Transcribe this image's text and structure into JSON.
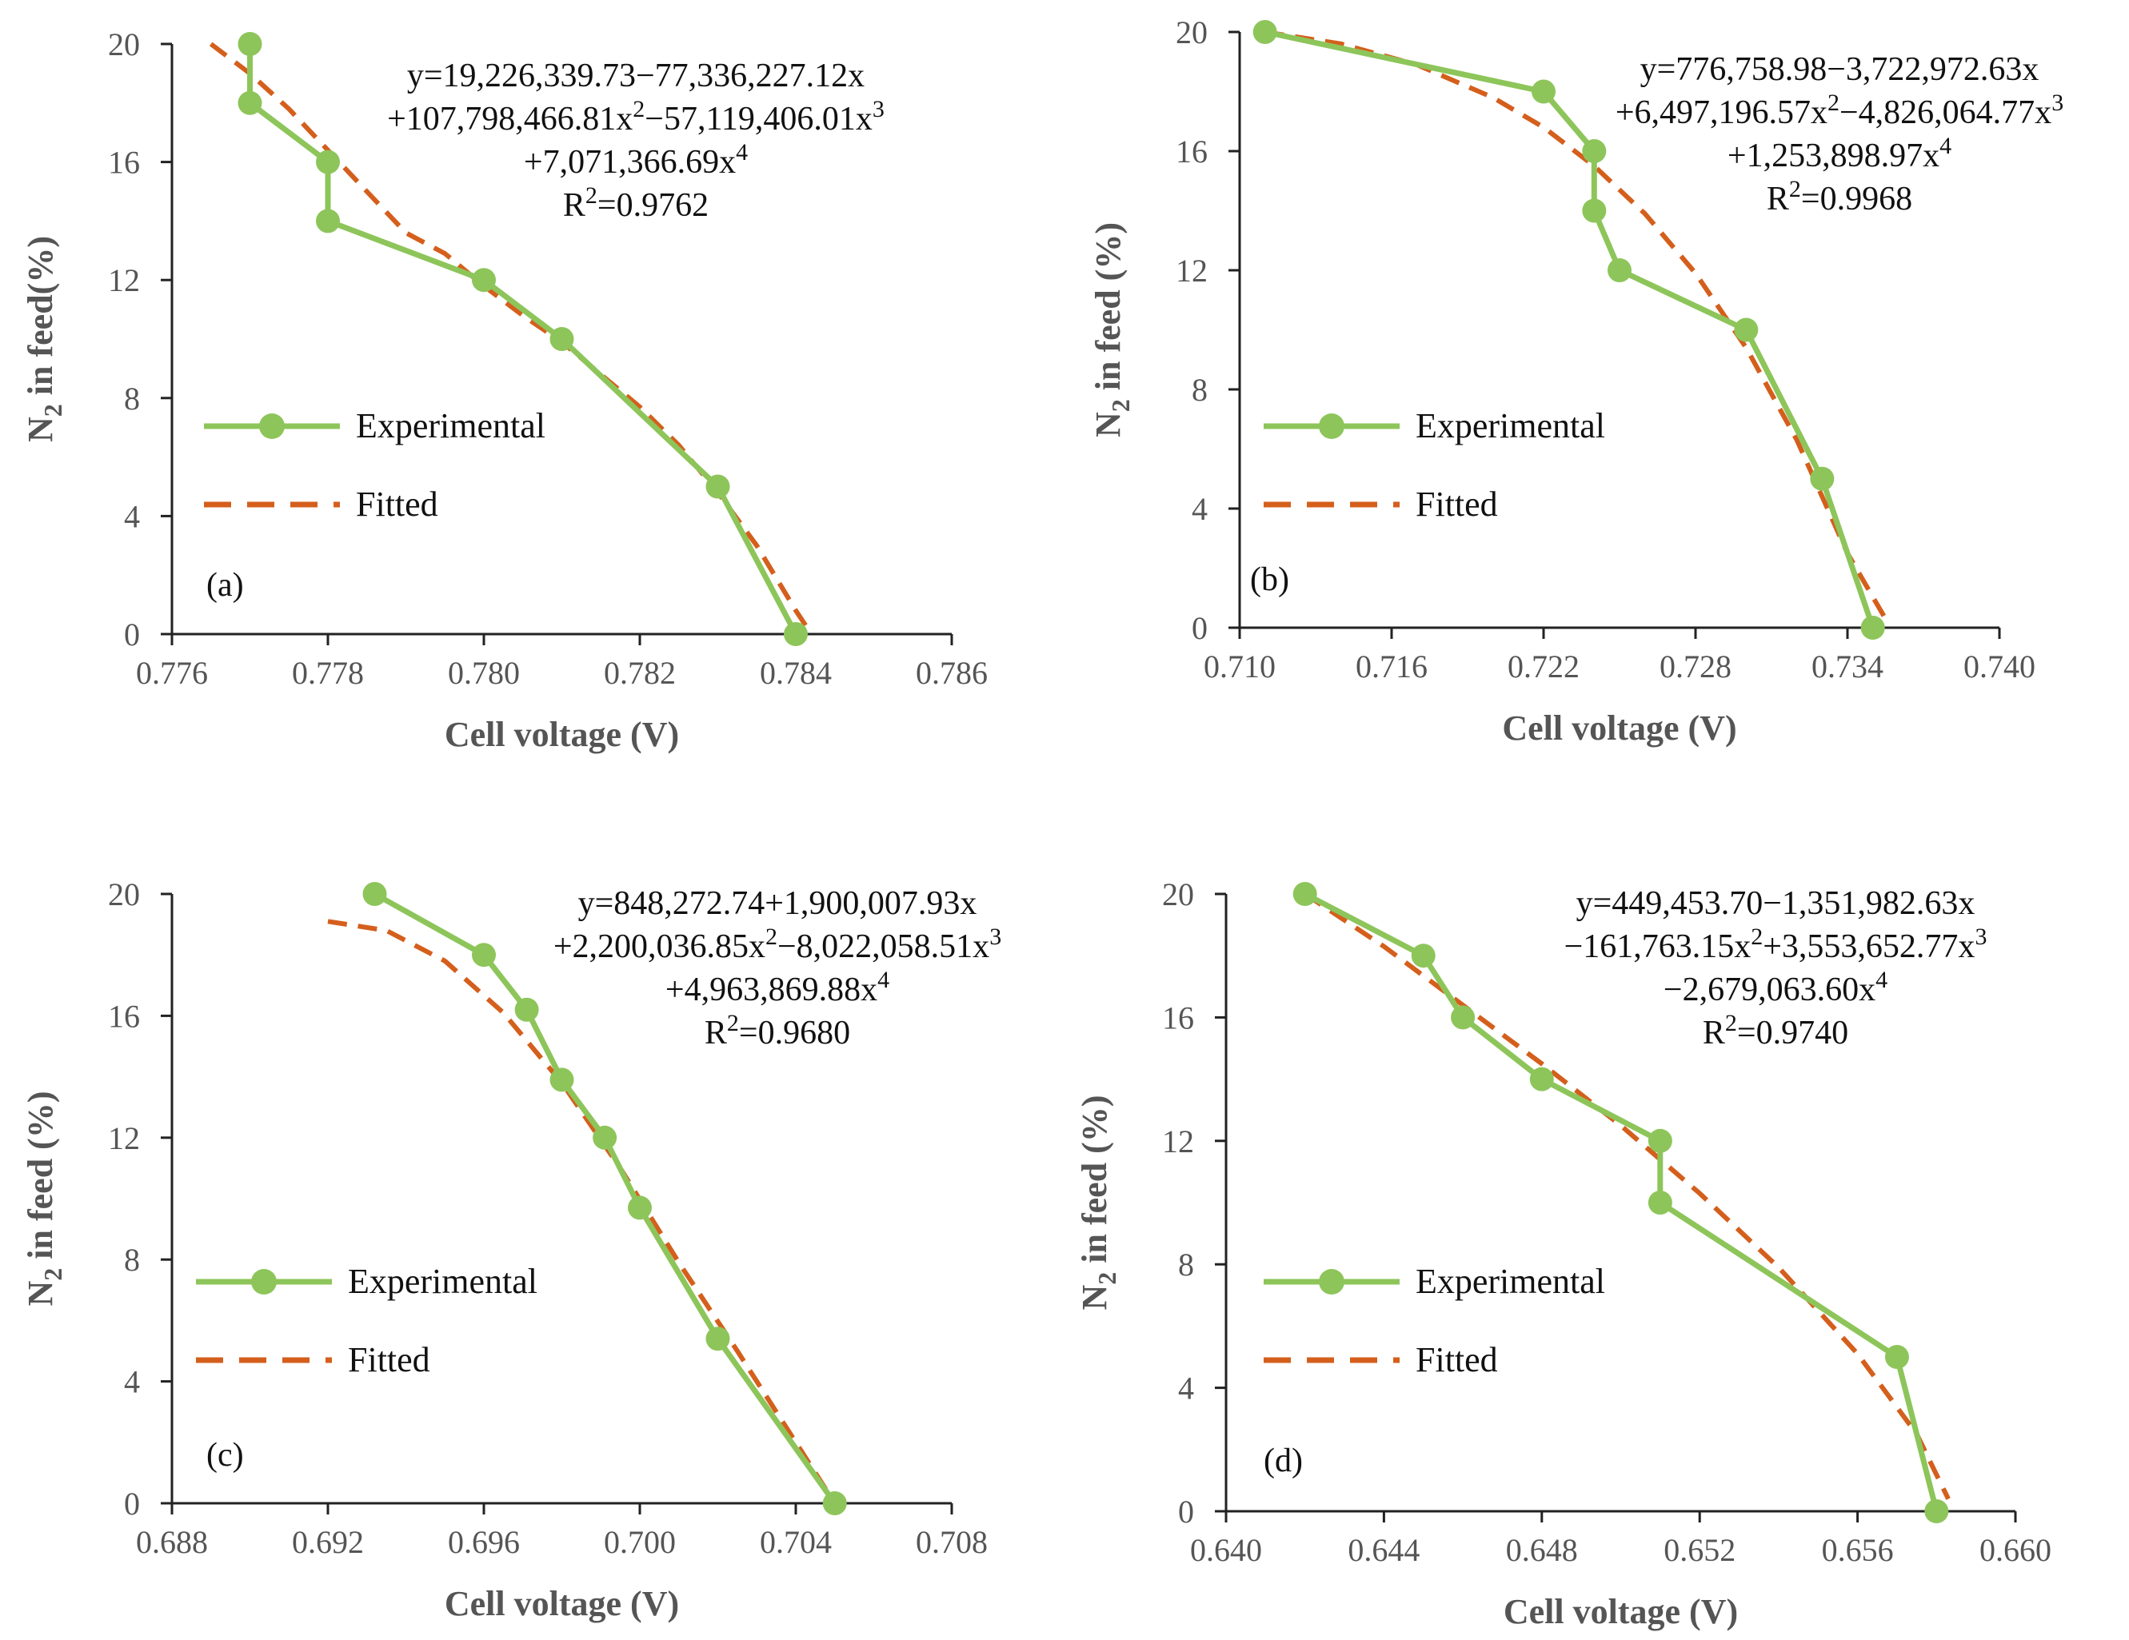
{
  "figure": {
    "colors": {
      "experimental": "#8dc55a",
      "fitted": "#d45f1c",
      "axis": "#222222",
      "tick_text": "#555555"
    }
  },
  "chart_data": [
    {
      "type": "line",
      "panel_label": "(a)",
      "xlabel": "Cell voltage (V)",
      "ylabel_main": "N",
      "ylabel_sub": "2",
      "ylabel_rest": " in feed(%)",
      "xlim": [
        0.776,
        0.786
      ],
      "ylim": [
        0,
        20
      ],
      "xticks": [
        0.776,
        0.778,
        0.78,
        0.782,
        0.784,
        0.786
      ],
      "xtick_labels": [
        "0.776",
        "0.778",
        "0.780",
        "0.782",
        "0.784",
        "0.786"
      ],
      "yticks": [
        0,
        4,
        8,
        12,
        16,
        20
      ],
      "ytick_labels": [
        "0",
        "4",
        "8",
        "12",
        "16",
        "20"
      ],
      "legend": {
        "experimental": "Experimental",
        "fitted": "Fitted"
      },
      "equation_lines": [
        [
          {
            "t": "y=19,226,339.73−77,336,227.12x"
          }
        ],
        [
          {
            "t": "+107,798,466.81x"
          },
          {
            "t": "2",
            "sup": true
          },
          {
            "t": "−57,119,406.01x"
          },
          {
            "t": "3",
            "sup": true
          }
        ],
        [
          {
            "t": "+7,071,366.69x"
          },
          {
            "t": "4",
            "sup": true
          }
        ],
        [
          {
            "t": "R"
          },
          {
            "t": "2",
            "sup": true
          },
          {
            "t": "=0.9762"
          }
        ]
      ],
      "series": [
        {
          "name": "Experimental",
          "x": [
            0.777,
            0.777,
            0.778,
            0.778,
            0.78,
            0.781,
            0.783,
            0.784
          ],
          "y": [
            20,
            18,
            16,
            14,
            12,
            10,
            5,
            0
          ]
        },
        {
          "name": "Fitted",
          "coefficients": [
            19226339.73,
            -77336227.12,
            107798466.81,
            -57119406.01,
            7071366.69
          ],
          "x": [
            0.7765,
            0.777,
            0.7775,
            0.778,
            0.7785,
            0.779,
            0.7795,
            0.78,
            0.7805,
            0.781,
            0.7815,
            0.782,
            0.7825,
            0.783,
            0.7835,
            0.784,
            0.7842
          ],
          "y": [
            20.0,
            19.0,
            17.8,
            16.4,
            15.0,
            13.6,
            12.9,
            11.8,
            10.8,
            9.9,
            8.8,
            7.7,
            6.4,
            4.8,
            3.0,
            0.8,
            0.0
          ]
        }
      ]
    },
    {
      "type": "line",
      "panel_label": "(b)",
      "xlabel": "Cell voltage (V)",
      "ylabel_main": "N",
      "ylabel_sub": "2",
      "ylabel_rest": " in feed (%)",
      "xlim": [
        0.71,
        0.74
      ],
      "ylim": [
        0,
        20
      ],
      "xticks": [
        0.71,
        0.716,
        0.722,
        0.728,
        0.734,
        0.74
      ],
      "xtick_labels": [
        "0.710",
        "0.716",
        "0.722",
        "0.728",
        "0.734",
        "0.740"
      ],
      "yticks": [
        0,
        4,
        8,
        12,
        16,
        20
      ],
      "ytick_labels": [
        "0",
        "4",
        "8",
        "12",
        "16",
        "20"
      ],
      "legend": {
        "experimental": "Experimental",
        "fitted": "Fitted"
      },
      "equation_lines": [
        [
          {
            "t": "y=776,758.98−3,722,972.63x"
          }
        ],
        [
          {
            "t": "+6,497,196.57x"
          },
          {
            "t": "2",
            "sup": true
          },
          {
            "t": "−4,826,064.77x"
          },
          {
            "t": "3",
            "sup": true
          }
        ],
        [
          {
            "t": "+1,253,898.97x"
          },
          {
            "t": "4",
            "sup": true
          }
        ],
        [
          {
            "t": "R"
          },
          {
            "t": "2",
            "sup": true
          },
          {
            "t": "=0.9968"
          }
        ]
      ],
      "series": [
        {
          "name": "Experimental",
          "x": [
            0.711,
            0.722,
            0.724,
            0.724,
            0.725,
            0.73,
            0.733,
            0.735
          ],
          "y": [
            20,
            18,
            16,
            14,
            12,
            10,
            5,
            0
          ]
        },
        {
          "name": "Fitted",
          "coefficients": [
            776758.98,
            -3722972.63,
            6497196.57,
            -4826064.77,
            1253898.97
          ],
          "x": [
            0.711,
            0.714,
            0.717,
            0.72,
            0.722,
            0.724,
            0.726,
            0.728,
            0.73,
            0.732,
            0.734,
            0.7355
          ],
          "y": [
            20.0,
            19.6,
            18.9,
            17.8,
            16.8,
            15.5,
            13.9,
            11.9,
            9.4,
            6.3,
            2.5,
            0.3
          ]
        }
      ]
    },
    {
      "type": "line",
      "panel_label": "(c)",
      "xlabel": "Cell voltage (V)",
      "ylabel_main": "N",
      "ylabel_sub": "2",
      "ylabel_rest": " in feed (%)",
      "xlim": [
        0.688,
        0.708
      ],
      "ylim": [
        0,
        20
      ],
      "xticks": [
        0.688,
        0.692,
        0.696,
        0.7,
        0.704,
        0.708
      ],
      "xtick_labels": [
        "0.688",
        "0.692",
        "0.696",
        "0.700",
        "0.704",
        "0.708"
      ],
      "yticks": [
        0,
        4,
        8,
        12,
        16,
        20
      ],
      "ytick_labels": [
        "0",
        "4",
        "8",
        "12",
        "16",
        "20"
      ],
      "legend": {
        "experimental": "Experimental",
        "fitted": "Fitted"
      },
      "equation_lines": [
        [
          {
            "t": "y=848,272.74+1,900,007.93x"
          }
        ],
        [
          {
            "t": "+2,200,036.85x"
          },
          {
            "t": "2",
            "sup": true
          },
          {
            "t": "−8,022,058.51x"
          },
          {
            "t": "3",
            "sup": true
          }
        ],
        [
          {
            "t": "+4,963,869.88x"
          },
          {
            "t": "4",
            "sup": true
          }
        ],
        [
          {
            "t": "R"
          },
          {
            "t": "2",
            "sup": true
          },
          {
            "t": "=0.9680"
          }
        ]
      ],
      "series": [
        {
          "name": "Experimental",
          "x": [
            0.6932,
            0.696,
            0.6971,
            0.698,
            0.6991,
            0.7,
            0.702,
            0.705
          ],
          "y": [
            20,
            18,
            16.2,
            13.9,
            12,
            9.7,
            5.4,
            0
          ]
        },
        {
          "name": "Fitted",
          "coefficients": [
            848272.74,
            1900007.93,
            2200036.85,
            -8022058.51,
            4963869.88
          ],
          "x": [
            0.692,
            0.6935,
            0.695,
            0.6965,
            0.698,
            0.6995,
            0.701,
            0.7025,
            0.704,
            0.705
          ],
          "y": [
            19.1,
            18.8,
            17.8,
            16.1,
            13.8,
            11.0,
            7.9,
            5.0,
            2.0,
            0.0
          ]
        }
      ]
    },
    {
      "type": "line",
      "panel_label": "(d)",
      "xlabel": "Cell voltage (V)",
      "ylabel_main": "N",
      "ylabel_sub": "2",
      "ylabel_rest": " in feed (%)",
      "xlim": [
        0.64,
        0.66
      ],
      "ylim": [
        0,
        20
      ],
      "xticks": [
        0.64,
        0.644,
        0.648,
        0.652,
        0.656,
        0.66
      ],
      "xtick_labels": [
        "0.640",
        "0.644",
        "0.648",
        "0.652",
        "0.656",
        "0.660"
      ],
      "yticks": [
        0,
        4,
        8,
        12,
        16,
        20
      ],
      "ytick_labels": [
        "0",
        "4",
        "8",
        "12",
        "16",
        "20"
      ],
      "legend": {
        "experimental": "Experimental",
        "fitted": "Fitted"
      },
      "equation_lines": [
        [
          {
            "t": "y=449,453.70−1,351,982.63x"
          }
        ],
        [
          {
            "t": "−161,763.15x"
          },
          {
            "t": "2",
            "sup": true
          },
          {
            "t": "+3,553,652.77x"
          },
          {
            "t": "3",
            "sup": true
          }
        ],
        [
          {
            "t": "−2,679,063.60x"
          },
          {
            "t": "4",
            "sup": true
          }
        ],
        [
          {
            "t": "R"
          },
          {
            "t": "2",
            "sup": true
          },
          {
            "t": "=0.9740"
          }
        ]
      ],
      "series": [
        {
          "name": "Experimental",
          "x": [
            0.642,
            0.645,
            0.646,
            0.648,
            0.651,
            0.651,
            0.657,
            0.658
          ],
          "y": [
            20,
            18,
            16,
            14,
            12,
            10,
            5,
            0
          ]
        },
        {
          "name": "Fitted",
          "coefficients": [
            449453.7,
            -1351982.63,
            -161763.15,
            3553652.77,
            -2679063.6
          ],
          "x": [
            0.642,
            0.644,
            0.646,
            0.648,
            0.65,
            0.652,
            0.654,
            0.656,
            0.6575,
            0.6583
          ],
          "y": [
            20.0,
            18.3,
            16.4,
            14.5,
            12.5,
            10.3,
            7.9,
            5.1,
            2.5,
            0.4
          ]
        }
      ]
    }
  ]
}
